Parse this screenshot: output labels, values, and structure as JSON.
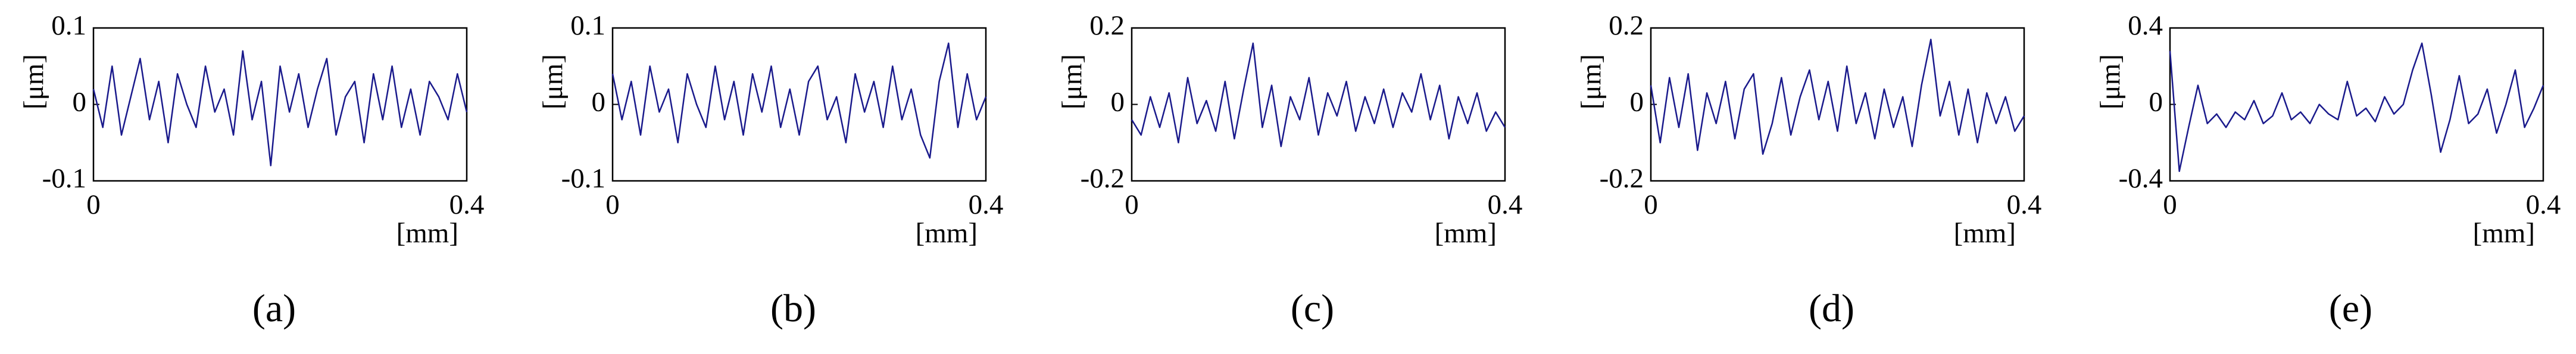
{
  "chart_data": [
    {
      "type": "line",
      "caption": "(a)",
      "ylabel": "[μm]",
      "xlabel": "[mm]",
      "xlim": [
        0,
        0.4
      ],
      "xticks": [
        0,
        0.4
      ],
      "ylim": [
        -0.1,
        0.1
      ],
      "yticks": [
        -0.1,
        0,
        0.1
      ],
      "x": [
        0,
        0.01,
        0.02,
        0.03,
        0.04,
        0.05,
        0.06,
        0.07,
        0.08,
        0.09,
        0.1,
        0.11,
        0.12,
        0.13,
        0.14,
        0.15,
        0.16,
        0.17,
        0.18,
        0.19,
        0.2,
        0.21,
        0.22,
        0.23,
        0.24,
        0.25,
        0.26,
        0.27,
        0.28,
        0.29,
        0.3,
        0.31,
        0.32,
        0.33,
        0.34,
        0.35,
        0.36,
        0.37,
        0.38,
        0.39,
        0.4
      ],
      "series": [
        {
          "color": "#1a1a8c",
          "values": [
            0.02,
            -0.03,
            0.05,
            -0.04,
            0.01,
            0.06,
            -0.02,
            0.03,
            -0.05,
            0.04,
            0.0,
            -0.03,
            0.05,
            -0.01,
            0.02,
            -0.04,
            0.07,
            -0.02,
            0.03,
            -0.08,
            0.05,
            -0.01,
            0.04,
            -0.03,
            0.02,
            0.06,
            -0.04,
            0.01,
            0.03,
            -0.05,
            0.04,
            -0.02,
            0.05,
            -0.03,
            0.02,
            -0.04,
            0.03,
            0.01,
            -0.02,
            0.04,
            -0.01
          ]
        }
      ]
    },
    {
      "type": "line",
      "caption": "(b)",
      "ylabel": "[μm]",
      "xlabel": "[mm]",
      "xlim": [
        0,
        0.4
      ],
      "xticks": [
        0,
        0.4
      ],
      "ylim": [
        -0.1,
        0.1
      ],
      "yticks": [
        -0.1,
        0,
        0.1
      ],
      "x": [
        0,
        0.01,
        0.02,
        0.03,
        0.04,
        0.05,
        0.06,
        0.07,
        0.08,
        0.09,
        0.1,
        0.11,
        0.12,
        0.13,
        0.14,
        0.15,
        0.16,
        0.17,
        0.18,
        0.19,
        0.2,
        0.21,
        0.22,
        0.23,
        0.24,
        0.25,
        0.26,
        0.27,
        0.28,
        0.29,
        0.3,
        0.31,
        0.32,
        0.33,
        0.34,
        0.35,
        0.36,
        0.37,
        0.38,
        0.39,
        0.4
      ],
      "series": [
        {
          "color": "#1a1a8c",
          "values": [
            0.04,
            -0.02,
            0.03,
            -0.04,
            0.05,
            -0.01,
            0.02,
            -0.05,
            0.04,
            0.0,
            -0.03,
            0.05,
            -0.02,
            0.03,
            -0.04,
            0.04,
            -0.01,
            0.05,
            -0.03,
            0.02,
            -0.04,
            0.03,
            0.05,
            -0.02,
            0.01,
            -0.05,
            0.04,
            -0.01,
            0.03,
            -0.03,
            0.05,
            -0.02,
            0.02,
            -0.04,
            -0.07,
            0.03,
            0.08,
            -0.03,
            0.04,
            -0.02,
            0.01
          ]
        }
      ]
    },
    {
      "type": "line",
      "caption": "(c)",
      "ylabel": "[μm]",
      "xlabel": "[mm]",
      "xlim": [
        0,
        0.4
      ],
      "xticks": [
        0,
        0.4
      ],
      "ylim": [
        -0.2,
        0.2
      ],
      "yticks": [
        -0.2,
        0,
        0.2
      ],
      "x": [
        0,
        0.01,
        0.02,
        0.03,
        0.04,
        0.05,
        0.06,
        0.07,
        0.08,
        0.09,
        0.1,
        0.11,
        0.12,
        0.13,
        0.14,
        0.15,
        0.16,
        0.17,
        0.18,
        0.19,
        0.2,
        0.21,
        0.22,
        0.23,
        0.24,
        0.25,
        0.26,
        0.27,
        0.28,
        0.29,
        0.3,
        0.31,
        0.32,
        0.33,
        0.34,
        0.35,
        0.36,
        0.37,
        0.38,
        0.39,
        0.4
      ],
      "series": [
        {
          "color": "#1a1a8c",
          "values": [
            -0.04,
            -0.08,
            0.02,
            -0.06,
            0.03,
            -0.1,
            0.07,
            -0.05,
            0.01,
            -0.07,
            0.06,
            -0.09,
            0.04,
            0.16,
            -0.06,
            0.05,
            -0.11,
            0.02,
            -0.04,
            0.07,
            -0.08,
            0.03,
            -0.03,
            0.06,
            -0.07,
            0.02,
            -0.05,
            0.04,
            -0.06,
            0.03,
            -0.02,
            0.08,
            -0.04,
            0.05,
            -0.09,
            0.02,
            -0.05,
            0.03,
            -0.07,
            -0.02,
            -0.06
          ]
        }
      ]
    },
    {
      "type": "line",
      "caption": "(d)",
      "ylabel": "[μm]",
      "xlabel": "[mm]",
      "xlim": [
        0,
        0.4
      ],
      "xticks": [
        0,
        0.4
      ],
      "ylim": [
        -0.2,
        0.2
      ],
      "yticks": [
        -0.2,
        0,
        0.2
      ],
      "x": [
        0,
        0.01,
        0.02,
        0.03,
        0.04,
        0.05,
        0.06,
        0.07,
        0.08,
        0.09,
        0.1,
        0.11,
        0.12,
        0.13,
        0.14,
        0.15,
        0.16,
        0.17,
        0.18,
        0.19,
        0.2,
        0.21,
        0.22,
        0.23,
        0.24,
        0.25,
        0.26,
        0.27,
        0.28,
        0.29,
        0.3,
        0.31,
        0.32,
        0.33,
        0.34,
        0.35,
        0.36,
        0.37,
        0.38,
        0.39,
        0.4
      ],
      "series": [
        {
          "color": "#1a1a8c",
          "values": [
            0.05,
            -0.1,
            0.07,
            -0.06,
            0.08,
            -0.12,
            0.03,
            -0.05,
            0.06,
            -0.09,
            0.04,
            0.08,
            -0.13,
            -0.05,
            0.07,
            -0.08,
            0.02,
            0.09,
            -0.04,
            0.06,
            -0.07,
            0.1,
            -0.05,
            0.03,
            -0.09,
            0.04,
            -0.06,
            0.02,
            -0.11,
            0.05,
            0.17,
            -0.03,
            0.06,
            -0.08,
            0.04,
            -0.1,
            0.03,
            -0.05,
            0.02,
            -0.07,
            -0.03
          ]
        }
      ]
    },
    {
      "type": "line",
      "caption": "(e)",
      "ylabel": "[μm]",
      "xlabel": "[mm]",
      "xlim": [
        0,
        0.4
      ],
      "xticks": [
        0,
        0.4
      ],
      "ylim": [
        -0.4,
        0.4
      ],
      "yticks": [
        -0.4,
        0,
        0.4
      ],
      "x": [
        0,
        0.01,
        0.02,
        0.03,
        0.04,
        0.05,
        0.06,
        0.07,
        0.08,
        0.09,
        0.1,
        0.11,
        0.12,
        0.13,
        0.14,
        0.15,
        0.16,
        0.17,
        0.18,
        0.19,
        0.2,
        0.21,
        0.22,
        0.23,
        0.24,
        0.25,
        0.26,
        0.27,
        0.28,
        0.29,
        0.3,
        0.31,
        0.32,
        0.33,
        0.34,
        0.35,
        0.36,
        0.37,
        0.38,
        0.39,
        0.4
      ],
      "series": [
        {
          "color": "#1a1a8c",
          "values": [
            0.28,
            -0.35,
            -0.12,
            0.1,
            -0.1,
            -0.05,
            -0.12,
            -0.04,
            -0.08,
            0.02,
            -0.1,
            -0.06,
            0.06,
            -0.08,
            -0.04,
            -0.1,
            0.0,
            -0.05,
            -0.08,
            0.12,
            -0.06,
            -0.02,
            -0.09,
            0.04,
            -0.05,
            0.0,
            0.18,
            0.32,
            0.05,
            -0.25,
            -0.08,
            0.15,
            -0.1,
            -0.05,
            0.08,
            -0.15,
            0.0,
            0.18,
            -0.12,
            -0.02,
            0.1
          ]
        }
      ]
    }
  ]
}
